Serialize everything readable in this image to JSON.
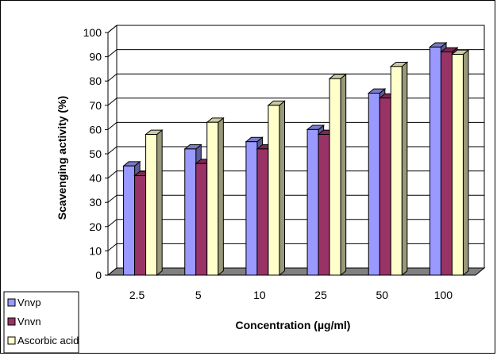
{
  "chart_data": {
    "type": "bar",
    "title": "",
    "xlabel": "Concentration (µg/ml)",
    "ylabel": "Scavenging activity (%)",
    "ylim": [
      0,
      100
    ],
    "yticks": [
      0,
      10,
      20,
      30,
      40,
      50,
      60,
      70,
      80,
      90,
      100
    ],
    "grid": true,
    "three_d": true,
    "legend_position": "bottom-left",
    "categories": [
      "2.5",
      "5",
      "10",
      "25",
      "50",
      "100"
    ],
    "series": [
      {
        "name": "Vnvp",
        "color": "#9999ff",
        "values": [
          45,
          52,
          55,
          60,
          75,
          94
        ]
      },
      {
        "name": "Vnvn",
        "color": "#993366",
        "values": [
          41,
          46,
          52,
          58,
          73,
          92
        ]
      },
      {
        "name": "Ascorbic acid",
        "color": "#ffffcc",
        "values": [
          58,
          63,
          70,
          81,
          86,
          91
        ]
      }
    ],
    "floor_color": "#808080",
    "wall_color": "#ffffff"
  }
}
